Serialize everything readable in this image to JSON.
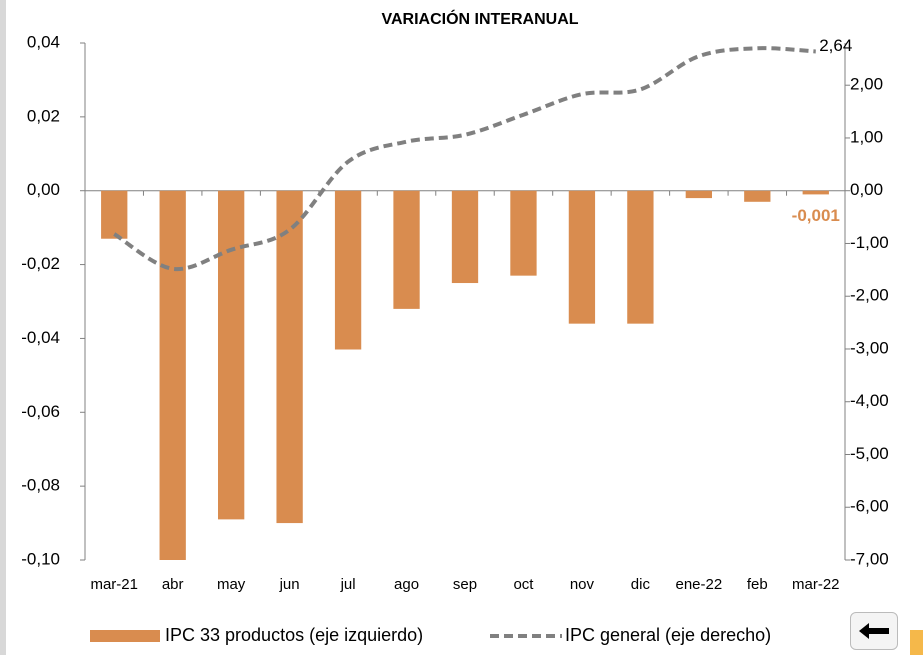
{
  "chart_data": {
    "type": "bar-line",
    "title": "VARIACIÓN INTERANUAL",
    "categories": [
      "mar-21",
      "abr",
      "may",
      "jun",
      "jul",
      "ago",
      "sep",
      "oct",
      "nov",
      "dic",
      "ene-22",
      "feb",
      "mar-22"
    ],
    "series": [
      {
        "name": "IPC 33 productos (eje izquierdo)",
        "type": "bar",
        "color": "#d98c4f",
        "axis": "y",
        "values": [
          -0.013,
          -0.1,
          -0.089,
          -0.09,
          -0.043,
          -0.032,
          -0.025,
          -0.023,
          -0.036,
          -0.036,
          -0.002,
          -0.003,
          -0.001
        ],
        "value_labels": [
          null,
          null,
          null,
          null,
          null,
          null,
          null,
          null,
          null,
          null,
          null,
          null,
          "-0,001"
        ]
      },
      {
        "name": "IPC general (eje derecho)",
        "type": "line",
        "color": "#808080",
        "axis": "y2",
        "values": [
          -0.82,
          -1.48,
          -1.12,
          -0.74,
          0.55,
          0.93,
          1.06,
          1.44,
          1.83,
          1.92,
          2.55,
          2.7,
          2.64
        ],
        "value_labels": [
          null,
          null,
          null,
          null,
          null,
          null,
          null,
          null,
          null,
          null,
          null,
          null,
          "2,64"
        ]
      }
    ],
    "ylim": [
      -0.1,
      0.04
    ],
    "yticks": [
      {
        "value": -0.1,
        "label": "-0,10"
      },
      {
        "value": -0.08,
        "label": "-0,08"
      },
      {
        "value": -0.06,
        "label": "-0,06"
      },
      {
        "value": -0.04,
        "label": "-0,04"
      },
      {
        "value": -0.02,
        "label": "-0,02"
      },
      {
        "value": 0,
        "label": "0,00"
      },
      {
        "value": 0.02,
        "label": "0,02"
      },
      {
        "value": 0.04,
        "label": "0,04"
      }
    ],
    "y2lim": [
      -7,
      2.8
    ],
    "y2ticks": [
      {
        "value": -7,
        "label": "-7,00"
      },
      {
        "value": -6,
        "label": "-6,00"
      },
      {
        "value": -5,
        "label": "-5,00"
      },
      {
        "value": -4,
        "label": "-4,00"
      },
      {
        "value": -3,
        "label": "-3,00"
      },
      {
        "value": -2,
        "label": "-2,00"
      },
      {
        "value": -1,
        "label": "-1,00"
      },
      {
        "value": 0,
        "label": "0,00"
      },
      {
        "value": 1,
        "label": "1,00"
      },
      {
        "value": 2,
        "label": "2,00"
      }
    ],
    "legend": "bottom"
  }
}
